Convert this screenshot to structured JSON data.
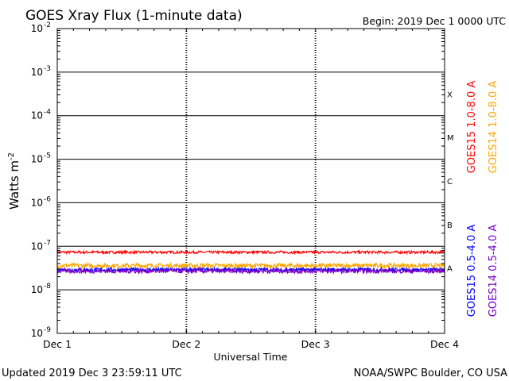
{
  "chart_data": {
    "type": "line",
    "title": "GOES Xray Flux (1-minute data)",
    "begin_label": "Begin:  2019 Dec 1 0000 UTC",
    "xlabel": "Universal Time",
    "ylabel": "Watts m",
    "ylabel_exp": "-2",
    "yscale": "log",
    "ylim": [
      1e-09,
      0.01
    ],
    "y_ticks": [
      {
        "exp": "-2",
        "value": 0.01
      },
      {
        "exp": "-3",
        "value": 0.001
      },
      {
        "exp": "-4",
        "value": 0.0001
      },
      {
        "exp": "-5",
        "value": 1e-05
      },
      {
        "exp": "-6",
        "value": 1e-06
      },
      {
        "exp": "-7",
        "value": 1e-07
      },
      {
        "exp": "-8",
        "value": 1e-08
      },
      {
        "exp": "-9",
        "value": 1e-09
      }
    ],
    "x_ticks": [
      "Dec 1",
      "Dec 2",
      "Dec 3",
      "Dec 4"
    ],
    "xlim": [
      "2019-12-01",
      "2019-12-04"
    ],
    "flare_classes": [
      {
        "label": "X",
        "value": 0.0001
      },
      {
        "label": "M",
        "value": 1e-05
      },
      {
        "label": "C",
        "value": 1e-06
      },
      {
        "label": "B",
        "value": 1e-07
      },
      {
        "label": "A",
        "value": 1e-08
      }
    ],
    "series": [
      {
        "name": "GOES15 1.0-8.0 A",
        "color": "#ff0000",
        "level": 7.3e-08,
        "noise": 0.03
      },
      {
        "name": "GOES14 1.0-8.0 A",
        "color": "#ffa500",
        "level": 3.6e-08,
        "noise": 0.05
      },
      {
        "name": "GOES15 0.5-4.0 A",
        "color": "#0000ff",
        "level": 2.9e-08,
        "noise": 0.04
      },
      {
        "name": "GOES14 0.5-4.0 A",
        "color": "#7b00c8",
        "level": 2.7e-08,
        "noise": 0.05
      }
    ]
  },
  "footer": {
    "updated": "Updated 2019 Dec  3 23:59:11 UTC",
    "source": "NOAA/SWPC Boulder, CO USA"
  }
}
